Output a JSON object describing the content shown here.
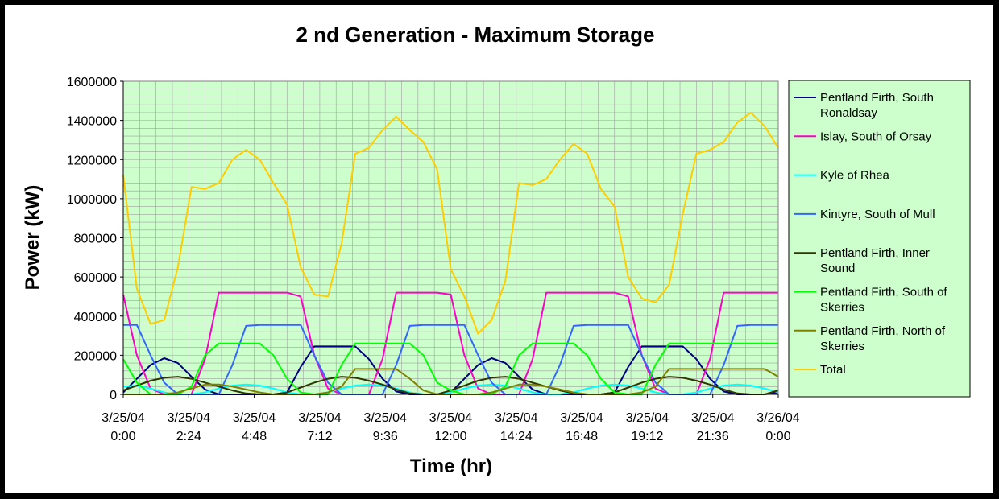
{
  "chart_data": {
    "type": "line",
    "title": "2 nd Generation - Maximum Storage",
    "xlabel": "Time (hr)",
    "ylabel": "Power (kW)",
    "ylim": [
      0,
      1600000
    ],
    "y_ticks": [
      "0",
      "200000",
      "400000",
      "600000",
      "800000",
      "1000000",
      "1200000",
      "1400000",
      "1600000"
    ],
    "x_ticks": [
      {
        "date": "3/25/04",
        "time": "0:00"
      },
      {
        "date": "3/25/04",
        "time": "2:24"
      },
      {
        "date": "3/25/04",
        "time": "4:48"
      },
      {
        "date": "3/25/04",
        "time": "7:12"
      },
      {
        "date": "3/25/04",
        "time": "9:36"
      },
      {
        "date": "3/25/04",
        "time": "12:00"
      },
      {
        "date": "3/25/04",
        "time": "14:24"
      },
      {
        "date": "3/25/04",
        "time": "16:48"
      },
      {
        "date": "3/25/04",
        "time": "19:12"
      },
      {
        "date": "3/25/04",
        "time": "21:36"
      },
      {
        "date": "3/26/04",
        "time": "0:00"
      }
    ],
    "x_unit": "hours",
    "grid": true,
    "plot_background": "#ccffcc",
    "legend_position": "right",
    "x": [
      0,
      0.5,
      1,
      1.5,
      2,
      2.5,
      3,
      3.5,
      4,
      4.5,
      5,
      5.5,
      6,
      6.5,
      7,
      7.5,
      8,
      8.5,
      9,
      9.5,
      10,
      10.5,
      11,
      11.5,
      12,
      12.5,
      13,
      13.5,
      14,
      14.5,
      15,
      15.5,
      16,
      16.5,
      17,
      17.5,
      18,
      18.5,
      19,
      19.5,
      20,
      20.5,
      21,
      21.5,
      22,
      22.5,
      23,
      23.5,
      24
    ],
    "series": [
      {
        "name": "Pentland Firth, South Ronaldsay",
        "color": "#000080",
        "values": [
          10000,
          80000,
          150000,
          185000,
          160000,
          90000,
          25000,
          0,
          0,
          0,
          0,
          0,
          10000,
          140000,
          245000,
          245000,
          245000,
          245000,
          180000,
          80000,
          15000,
          0,
          0,
          0,
          10000,
          80000,
          150000,
          185000,
          160000,
          90000,
          25000,
          0,
          0,
          0,
          0,
          0,
          10000,
          140000,
          245000,
          245000,
          245000,
          245000,
          180000,
          80000,
          15000,
          0,
          0,
          0,
          10000
        ]
      },
      {
        "name": "Islay, South of Orsay",
        "color": "#ff00cc",
        "values": [
          510000,
          200000,
          30000,
          0,
          0,
          0,
          180000,
          520000,
          520000,
          520000,
          520000,
          520000,
          520000,
          500000,
          200000,
          30000,
          0,
          0,
          0,
          180000,
          520000,
          520000,
          520000,
          520000,
          510000,
          200000,
          30000,
          0,
          0,
          0,
          180000,
          520000,
          520000,
          520000,
          520000,
          520000,
          520000,
          500000,
          200000,
          30000,
          0,
          0,
          0,
          180000,
          520000,
          520000,
          520000,
          520000,
          520000
        ]
      },
      {
        "name": "Kyle of Rhea",
        "color": "#00ffff",
        "values": [
          40000,
          45000,
          30000,
          10000,
          0,
          0,
          10000,
          30000,
          45000,
          50000,
          45000,
          30000,
          10000,
          0,
          0,
          10000,
          30000,
          45000,
          50000,
          45000,
          30000,
          10000,
          0,
          0,
          10000,
          30000,
          45000,
          50000,
          45000,
          30000,
          10000,
          0,
          0,
          10000,
          30000,
          45000,
          50000,
          45000,
          30000,
          10000,
          0,
          0,
          10000,
          30000,
          45000,
          50000,
          45000,
          30000,
          10000
        ]
      },
      {
        "name": "Kintyre, South of Mull",
        "color": "#3366ff",
        "values": [
          355000,
          355000,
          200000,
          60000,
          0,
          0,
          0,
          0,
          150000,
          350000,
          355000,
          355000,
          355000,
          355000,
          200000,
          60000,
          0,
          0,
          0,
          0,
          150000,
          350000,
          355000,
          355000,
          355000,
          355000,
          200000,
          60000,
          0,
          0,
          0,
          0,
          150000,
          350000,
          355000,
          355000,
          355000,
          355000,
          200000,
          60000,
          0,
          0,
          0,
          0,
          150000,
          350000,
          355000,
          355000,
          355000
        ]
      },
      {
        "name": "Pentland Firth, Inner Sound",
        "color": "#333300",
        "values": [
          20000,
          45000,
          70000,
          85000,
          90000,
          80000,
          60000,
          40000,
          20000,
          5000,
          0,
          0,
          10000,
          35000,
          60000,
          80000,
          90000,
          85000,
          70000,
          50000,
          25000,
          5000,
          0,
          0,
          20000,
          45000,
          70000,
          85000,
          90000,
          80000,
          60000,
          40000,
          20000,
          5000,
          0,
          0,
          10000,
          35000,
          60000,
          80000,
          90000,
          85000,
          70000,
          50000,
          25000,
          5000,
          0,
          0,
          20000
        ]
      },
      {
        "name": "Pentland Firth, South of Skerries",
        "color": "#00ff00",
        "values": [
          180000,
          60000,
          0,
          0,
          0,
          40000,
          200000,
          260000,
          260000,
          260000,
          260000,
          200000,
          80000,
          10000,
          0,
          0,
          150000,
          260000,
          260000,
          260000,
          260000,
          260000,
          200000,
          60000,
          20000,
          0,
          0,
          0,
          40000,
          200000,
          260000,
          260000,
          260000,
          260000,
          200000,
          80000,
          10000,
          0,
          0,
          150000,
          260000,
          260000,
          260000,
          260000,
          260000,
          260000,
          260000,
          260000,
          260000
        ]
      },
      {
        "name": "Pentland Firth, North of Skerries",
        "color": "#808000",
        "values": [
          0,
          0,
          0,
          0,
          10000,
          30000,
          50000,
          50000,
          40000,
          25000,
          10000,
          0,
          0,
          0,
          0,
          10000,
          40000,
          130000,
          130000,
          130000,
          130000,
          80000,
          20000,
          0,
          0,
          0,
          0,
          10000,
          30000,
          50000,
          50000,
          40000,
          25000,
          10000,
          0,
          0,
          0,
          0,
          10000,
          40000,
          130000,
          130000,
          130000,
          130000,
          130000,
          130000,
          130000,
          130000,
          90000
        ]
      },
      {
        "name": "Total",
        "color": "#ffcc00",
        "values": [
          1120000,
          540000,
          360000,
          380000,
          650000,
          1060000,
          1050000,
          1080000,
          1200000,
          1250000,
          1200000,
          1080000,
          970000,
          650000,
          510000,
          500000,
          770000,
          1230000,
          1260000,
          1350000,
          1420000,
          1350000,
          1290000,
          1150000,
          640000,
          500000,
          310000,
          380000,
          580000,
          1080000,
          1070000,
          1100000,
          1200000,
          1280000,
          1230000,
          1050000,
          960000,
          600000,
          490000,
          470000,
          560000,
          920000,
          1230000,
          1250000,
          1290000,
          1390000,
          1440000,
          1370000,
          1260000
        ]
      }
    ]
  }
}
